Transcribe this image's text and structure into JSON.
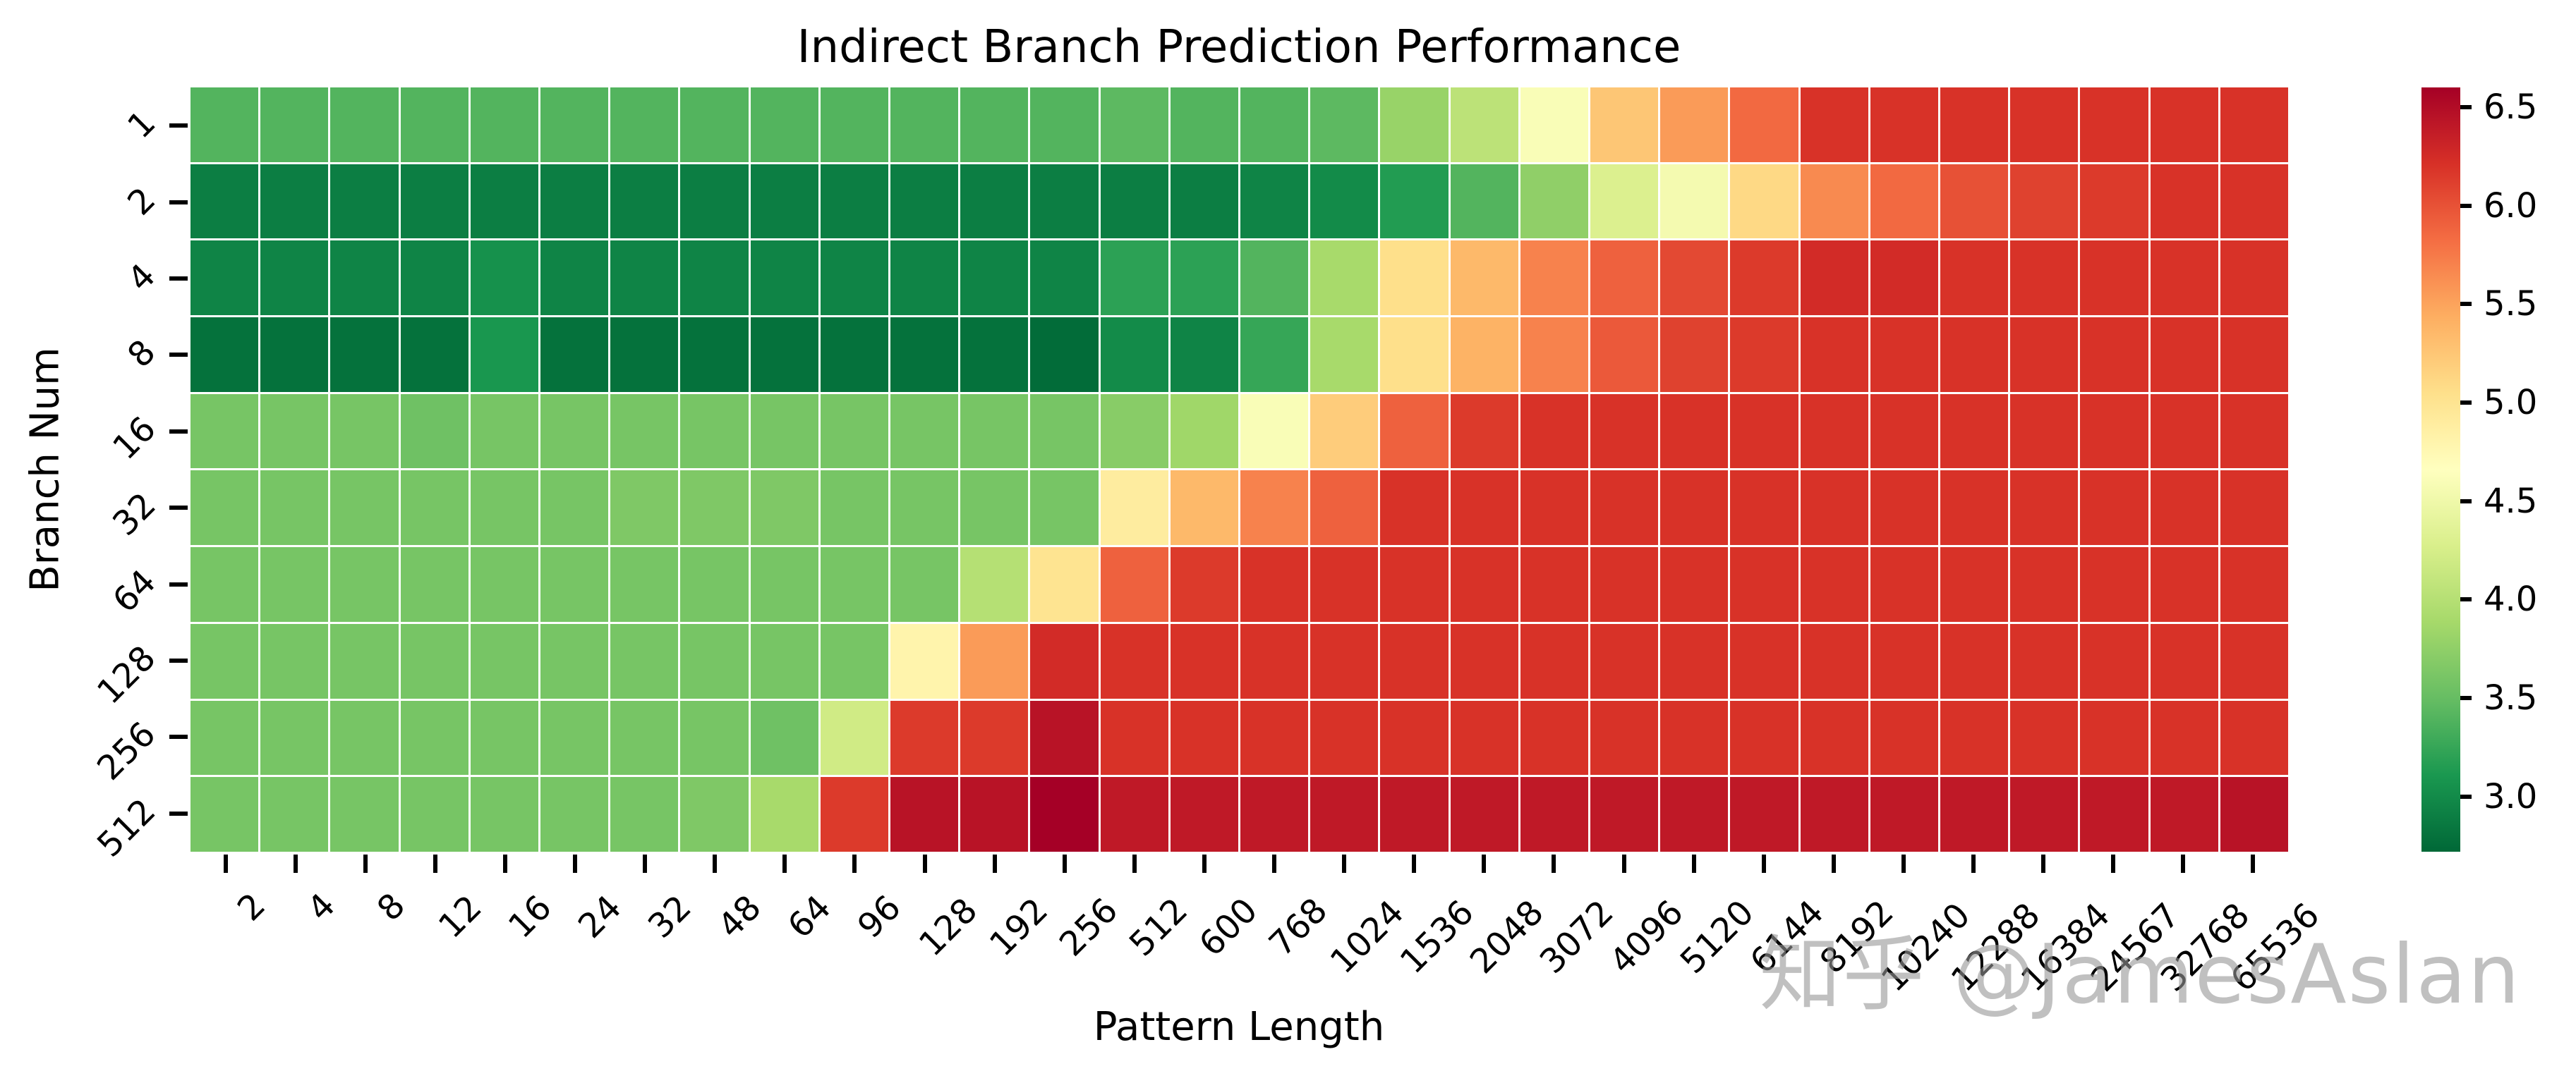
{
  "chart_data": {
    "type": "heatmap",
    "title": "Indirect Branch Prediction Performance",
    "xlabel": "Pattern Length",
    "ylabel": "Branch Num",
    "x_categories": [
      "2",
      "4",
      "8",
      "12",
      "16",
      "24",
      "32",
      "48",
      "64",
      "96",
      "128",
      "192",
      "256",
      "512",
      "600",
      "768",
      "1024",
      "1536",
      "2048",
      "3072",
      "4096",
      "5120",
      "6144",
      "8192",
      "10240",
      "12288",
      "16384",
      "24567",
      "32768",
      "65536"
    ],
    "y_categories": [
      "1",
      "2",
      "4",
      "8",
      "16",
      "32",
      "64",
      "128",
      "256",
      "512"
    ],
    "colormap": "RdYlGn_r",
    "vmin": 2.72,
    "vmax": 6.6,
    "grid_line_color": "#ffffff",
    "colorbar_ticks": [
      "6.5",
      "6.0",
      "5.5",
      "5.0",
      "4.5",
      "4.0",
      "3.5",
      "3.0"
    ],
    "colorbar_tick_values": [
      6.5,
      6.0,
      5.5,
      5.0,
      4.5,
      4.0,
      3.5,
      3.0
    ],
    "legend_position": "right",
    "values": [
      [
        3.4,
        3.4,
        3.4,
        3.4,
        3.4,
        3.4,
        3.4,
        3.4,
        3.4,
        3.4,
        3.4,
        3.4,
        3.4,
        3.45,
        3.4,
        3.4,
        3.45,
        3.8,
        4.05,
        4.6,
        5.25,
        5.55,
        5.85,
        6.2,
        6.2,
        6.2,
        6.2,
        6.2,
        6.2,
        6.2
      ],
      [
        2.9,
        2.9,
        2.9,
        2.9,
        2.9,
        2.9,
        2.9,
        2.9,
        2.9,
        2.9,
        2.9,
        2.9,
        2.9,
        2.9,
        2.9,
        2.95,
        3.0,
        3.15,
        3.4,
        3.75,
        4.3,
        4.55,
        5.1,
        5.65,
        5.85,
        6.0,
        6.1,
        6.15,
        6.2,
        6.2
      ],
      [
        2.95,
        2.95,
        2.95,
        2.95,
        3.05,
        2.95,
        2.95,
        2.95,
        2.95,
        2.95,
        2.95,
        2.95,
        2.95,
        3.2,
        3.2,
        3.4,
        3.9,
        5.05,
        5.35,
        5.7,
        5.9,
        6.05,
        6.15,
        6.25,
        6.25,
        6.2,
        6.2,
        6.2,
        6.2,
        6.2
      ],
      [
        2.8,
        2.8,
        2.8,
        2.8,
        3.1,
        2.8,
        2.8,
        2.8,
        2.8,
        2.8,
        2.8,
        2.8,
        2.75,
        3.0,
        2.95,
        3.25,
        3.9,
        5.05,
        5.4,
        5.7,
        5.95,
        6.1,
        6.15,
        6.2,
        6.2,
        6.2,
        6.2,
        6.2,
        6.2,
        6.2
      ],
      [
        3.6,
        3.6,
        3.6,
        3.55,
        3.6,
        3.6,
        3.6,
        3.6,
        3.6,
        3.6,
        3.6,
        3.6,
        3.6,
        3.7,
        3.85,
        4.6,
        5.2,
        5.9,
        6.15,
        6.2,
        6.2,
        6.2,
        6.2,
        6.2,
        6.2,
        6.2,
        6.2,
        6.2,
        6.2,
        6.2
      ],
      [
        3.6,
        3.6,
        3.6,
        3.6,
        3.6,
        3.6,
        3.65,
        3.65,
        3.65,
        3.6,
        3.6,
        3.6,
        3.6,
        4.9,
        5.35,
        5.7,
        5.9,
        6.2,
        6.2,
        6.2,
        6.2,
        6.2,
        6.2,
        6.2,
        6.2,
        6.2,
        6.2,
        6.2,
        6.2,
        6.2
      ],
      [
        3.6,
        3.6,
        3.6,
        3.6,
        3.6,
        3.6,
        3.6,
        3.6,
        3.6,
        3.6,
        3.6,
        4.0,
        5.0,
        5.9,
        6.15,
        6.2,
        6.2,
        6.2,
        6.2,
        6.2,
        6.2,
        6.2,
        6.2,
        6.2,
        6.2,
        6.2,
        6.2,
        6.2,
        6.2,
        6.2
      ],
      [
        3.6,
        3.6,
        3.6,
        3.6,
        3.6,
        3.6,
        3.6,
        3.6,
        3.6,
        3.6,
        4.8,
        5.55,
        6.25,
        6.2,
        6.2,
        6.2,
        6.2,
        6.2,
        6.2,
        6.2,
        6.2,
        6.2,
        6.2,
        6.2,
        6.2,
        6.2,
        6.2,
        6.2,
        6.2,
        6.2
      ],
      [
        3.6,
        3.6,
        3.6,
        3.6,
        3.6,
        3.6,
        3.6,
        3.6,
        3.55,
        4.2,
        6.15,
        6.15,
        6.45,
        6.2,
        6.2,
        6.2,
        6.2,
        6.2,
        6.2,
        6.2,
        6.2,
        6.2,
        6.2,
        6.2,
        6.2,
        6.2,
        6.2,
        6.2,
        6.2,
        6.2
      ],
      [
        3.6,
        3.6,
        3.6,
        3.6,
        3.6,
        3.6,
        3.6,
        3.65,
        3.9,
        6.15,
        6.45,
        6.45,
        6.6,
        6.4,
        6.4,
        6.4,
        6.4,
        6.4,
        6.4,
        6.4,
        6.4,
        6.4,
        6.4,
        6.4,
        6.4,
        6.4,
        6.4,
        6.4,
        6.4,
        6.45
      ]
    ]
  },
  "watermark": {
    "text": "知乎 @JamesAslan",
    "color": "#c0c0c0"
  }
}
